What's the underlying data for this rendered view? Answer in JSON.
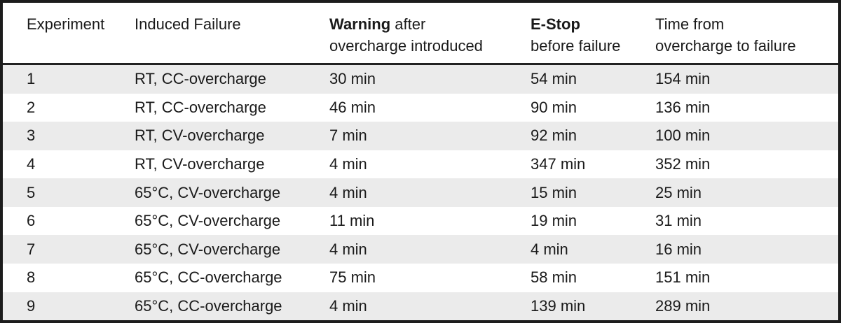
{
  "colors": {
    "outer_border": "#1c1c1c",
    "header_separator": "#222222",
    "stripe_gray": "#ebebeb",
    "row_white": "#ffffff",
    "text": "#1a1a1a"
  },
  "header": {
    "experiment": "Experiment",
    "induced_failure": "Induced Failure",
    "warning_bold": "Warning",
    "warning_after": " after",
    "warning_line2": "overcharge introduced",
    "estop_bold": "E-Stop",
    "estop_line2": "before failure",
    "time_line1": "Time from",
    "time_line2": "overcharge to failure"
  },
  "chart_data": {
    "type": "table",
    "title": "",
    "columns": [
      "Experiment",
      "Induced Failure",
      "Warning after overcharge introduced",
      "E-Stop before failure",
      "Time from overcharge to failure"
    ],
    "rows": [
      [
        "1",
        "RT, CC-overcharge",
        "30 min",
        "54 min",
        "154 min"
      ],
      [
        "2",
        "RT, CC-overcharge",
        "46 min",
        "90 min",
        "136 min"
      ],
      [
        "3",
        "RT, CV-overcharge",
        "7 min",
        "92 min",
        "100 min"
      ],
      [
        "4",
        "RT, CV-overcharge",
        "4 min",
        "347 min",
        "352 min"
      ],
      [
        "5",
        "65°C, CV-overcharge",
        "4 min",
        "15 min",
        "25 min"
      ],
      [
        "6",
        "65°C, CV-overcharge",
        "11 min",
        "19 min",
        "31 min"
      ],
      [
        "7",
        "65°C, CV-overcharge",
        "4 min",
        "4 min",
        "16 min"
      ],
      [
        "8",
        "65°C, CC-overcharge",
        "75 min",
        "58 min",
        "151 min"
      ],
      [
        "9",
        "65°C, CC-overcharge",
        "4 min",
        "139 min",
        "289 min"
      ]
    ],
    "layout": {
      "striped_rows": true,
      "stripe_pattern": "odd rows gray starting at row 1",
      "header_bold_terms": [
        "Warning",
        "E-Stop"
      ]
    }
  }
}
